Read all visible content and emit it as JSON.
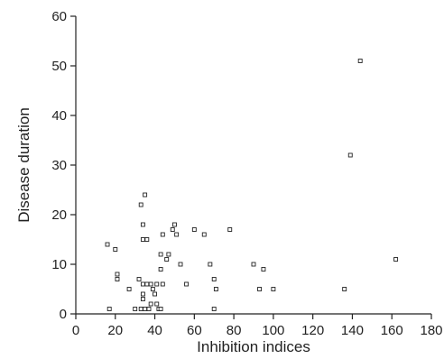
{
  "chart_data": {
    "type": "scatter",
    "title": "",
    "xlabel": "Inhibition indices",
    "ylabel": "Disease duration",
    "xlim": [
      0,
      180
    ],
    "ylim": [
      0,
      60
    ],
    "xticks": [
      0,
      20,
      40,
      60,
      80,
      100,
      120,
      140,
      160,
      180
    ],
    "yticks": [
      0,
      10,
      20,
      30,
      40,
      50,
      60
    ],
    "grid": false,
    "marker": "open-square",
    "series": [
      {
        "points": [
          [
            16,
            14
          ],
          [
            20,
            13
          ],
          [
            21,
            8
          ],
          [
            21,
            7
          ],
          [
            17,
            1
          ],
          [
            27,
            5
          ],
          [
            30,
            1
          ],
          [
            32,
            7
          ],
          [
            33,
            22
          ],
          [
            34,
            15
          ],
          [
            34,
            18
          ],
          [
            35,
            24
          ],
          [
            36,
            15
          ],
          [
            33,
            1
          ],
          [
            34,
            3
          ],
          [
            34,
            4
          ],
          [
            34,
            6
          ],
          [
            35,
            1
          ],
          [
            36,
            6
          ],
          [
            37,
            1
          ],
          [
            38,
            6
          ],
          [
            38,
            2
          ],
          [
            39,
            5
          ],
          [
            40,
            4
          ],
          [
            41,
            6
          ],
          [
            41,
            2
          ],
          [
            42,
            1
          ],
          [
            43,
            1
          ],
          [
            43,
            12
          ],
          [
            43,
            9
          ],
          [
            44,
            16
          ],
          [
            44,
            6
          ],
          [
            46,
            11
          ],
          [
            47,
            12
          ],
          [
            49,
            17
          ],
          [
            50,
            18
          ],
          [
            51,
            16
          ],
          [
            53,
            10
          ],
          [
            56,
            6
          ],
          [
            60,
            17
          ],
          [
            65,
            16
          ],
          [
            68,
            10
          ],
          [
            70,
            1
          ],
          [
            70,
            7
          ],
          [
            71,
            5
          ],
          [
            78,
            17
          ],
          [
            90,
            10
          ],
          [
            93,
            5
          ],
          [
            95,
            9
          ],
          [
            100,
            5
          ],
          [
            136,
            5
          ],
          [
            139,
            32
          ],
          [
            144,
            51
          ],
          [
            162,
            11
          ]
        ]
      }
    ]
  }
}
